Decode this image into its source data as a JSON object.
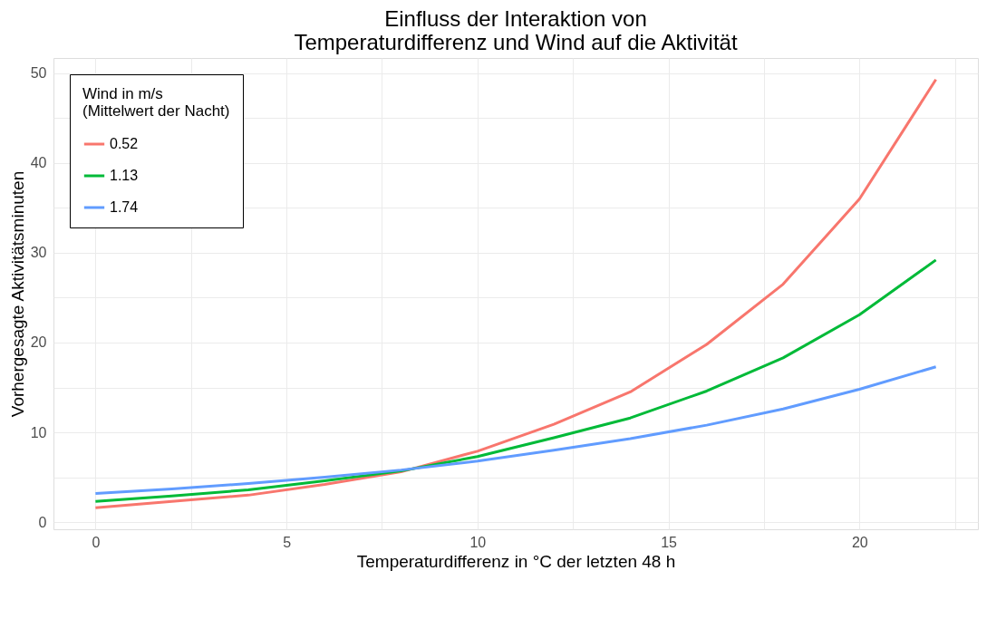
{
  "chart_data": {
    "type": "line",
    "title": "Einfluss der Interaktion von\nTemperaturdifferenz und Wind auf die Aktivität",
    "xlabel": "Temperaturdifferenz in °C der letzten 48 h",
    "ylabel": "Vorhergesagte Aktivitätsminuten",
    "legend_title": "Wind in m/s\n(Mittelwert der Nacht)",
    "x": [
      0,
      2,
      4,
      6,
      8,
      10,
      12,
      14,
      16,
      18,
      20,
      22
    ],
    "series": [
      {
        "name": "0.52",
        "color": "#f8766d",
        "values": [
          1.6,
          2.3,
          3.0,
          4.2,
          5.6,
          7.9,
          10.9,
          14.5,
          19.8,
          26.5,
          36.0,
          49.3
        ]
      },
      {
        "name": "1.13",
        "color": "#00ba38",
        "values": [
          2.3,
          2.9,
          3.6,
          4.6,
          5.7,
          7.3,
          9.4,
          11.6,
          14.6,
          18.3,
          23.1,
          29.2
        ]
      },
      {
        "name": "1.74",
        "color": "#619cff",
        "values": [
          3.2,
          3.7,
          4.3,
          5.0,
          5.8,
          6.8,
          8.0,
          9.3,
          10.8,
          12.6,
          14.8,
          17.3
        ]
      }
    ],
    "xlim": [
      -1.1,
      23.1
    ],
    "ylim": [
      -0.8,
      51.7
    ],
    "xticks": [
      0,
      {
        "value": 2.5,
        "label": null
      },
      5,
      {
        "value": 7.5,
        "label": null
      },
      10,
      {
        "value": 12.5,
        "label": null
      },
      15,
      {
        "value": 17.5,
        "label": null
      },
      20,
      {
        "value": 22.5,
        "label": null
      }
    ],
    "yticks": [
      0,
      {
        "value": 5,
        "label": null
      },
      10,
      {
        "value": 15,
        "label": null
      },
      20,
      {
        "value": 25,
        "label": null
      },
      30,
      {
        "value": 35,
        "label": null
      },
      40,
      {
        "value": 45,
        "label": null
      },
      50
    ],
    "grid": true,
    "legend": "top left",
    "line_style": "solid",
    "marker": "none"
  }
}
